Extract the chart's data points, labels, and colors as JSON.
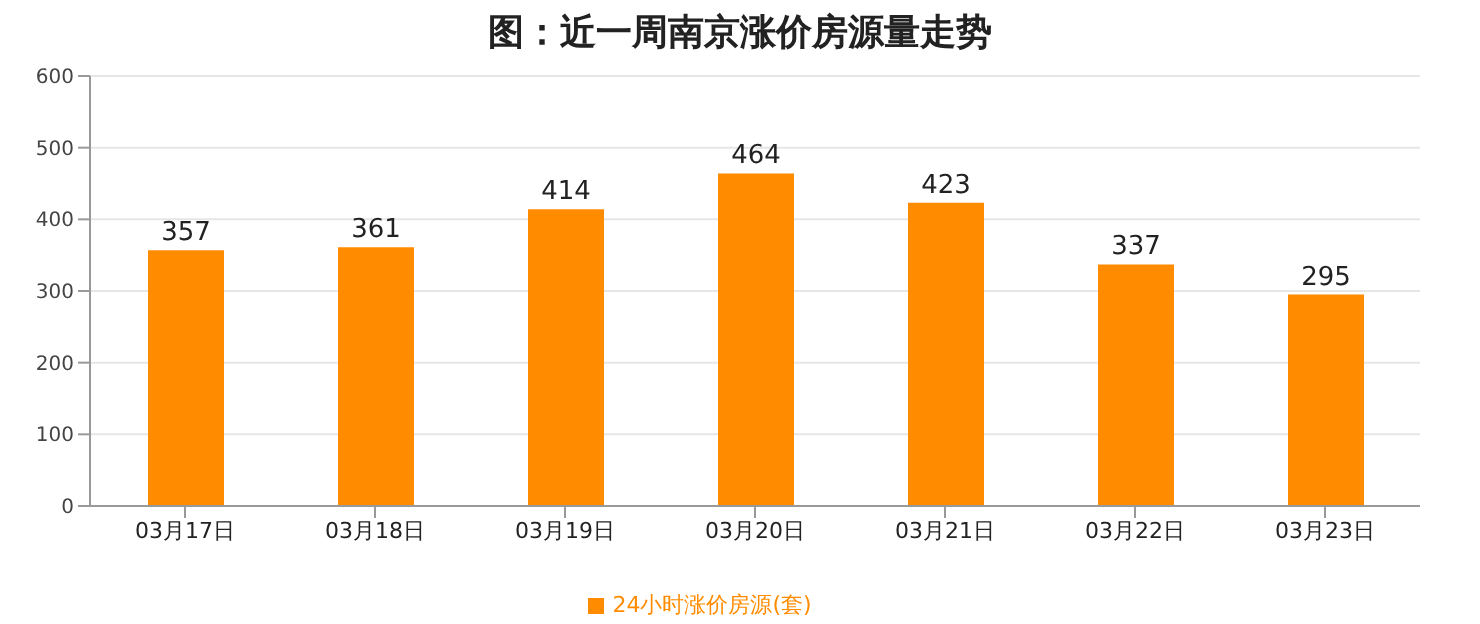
{
  "chart_data": {
    "type": "bar",
    "title": "图：近一周南京涨价房源量走势",
    "categories": [
      "03月17日",
      "03月18日",
      "03月19日",
      "03月20日",
      "03月21日",
      "03月22日",
      "03月23日"
    ],
    "series": [
      {
        "name": "24小时涨价房源(套)",
        "color": "#ff8c00",
        "values": [
          357,
          361,
          414,
          464,
          423,
          337,
          295
        ]
      }
    ],
    "ylim": [
      0,
      600
    ],
    "yticks": [
      0,
      100,
      200,
      300,
      400,
      500,
      600
    ],
    "grid": "y",
    "legend": "bottom",
    "data_labels": true
  }
}
